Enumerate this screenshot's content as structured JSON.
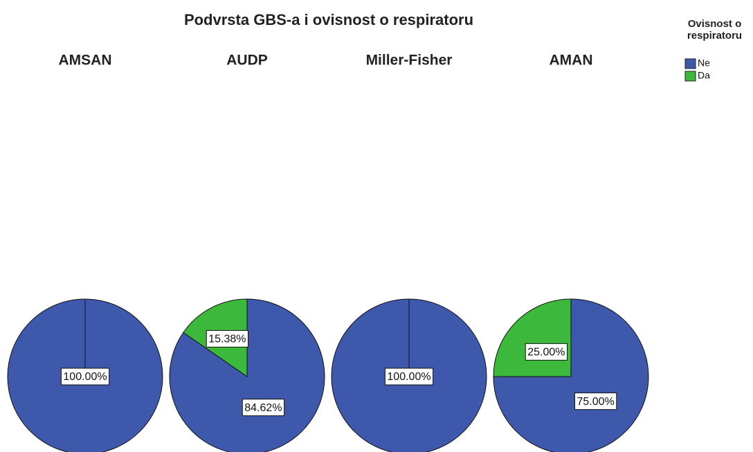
{
  "chart_data": {
    "type": "pie",
    "title": "Podvrsta GBS-a i ovisnost o respiratoru",
    "legend_title": "Ovisnost o respiratoru",
    "categories": [
      "Ne",
      "Da"
    ],
    "colors": [
      "#3e58ac",
      "#3cb83c"
    ],
    "panels": [
      {
        "title": "AMSAN",
        "values": [
          100,
          0
        ],
        "value_labels": [
          "100.00%",
          null
        ]
      },
      {
        "title": "AUDP",
        "values": [
          84.62,
          15.38
        ],
        "value_labels": [
          "84.62%",
          "15.38%"
        ]
      },
      {
        "title": "Miller-Fisher",
        "values": [
          100,
          0
        ],
        "value_labels": [
          "100.00%",
          null
        ]
      },
      {
        "title": "AMAN",
        "values": [
          75,
          25
        ],
        "value_labels": [
          "75.00%",
          "25.00%"
        ]
      }
    ]
  }
}
